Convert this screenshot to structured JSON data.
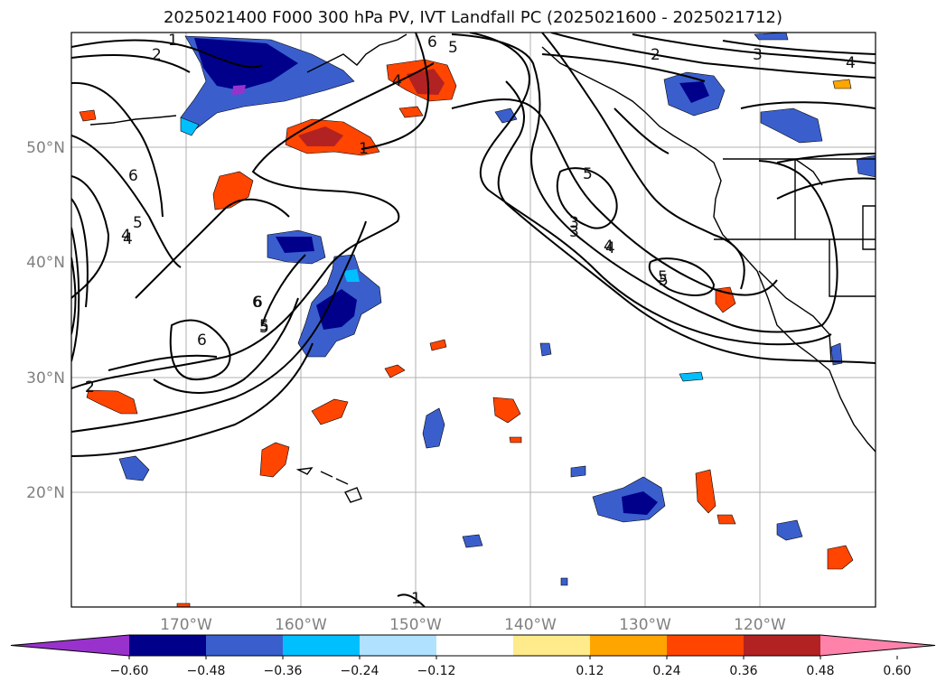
{
  "title": "2025021400 F000 300 hPa PV, IVT Landfall PC (2025021600 - 2025021712)",
  "lat_labels": [
    "50°N",
    "40°N",
    "30°N",
    "20°N"
  ],
  "lon_labels": [
    "170°W",
    "160°W",
    "150°W",
    "140°W",
    "130°W",
    "120°W"
  ],
  "colorbar": {
    "tick_labels": [
      "−0.60",
      "−0.48",
      "−0.36",
      "−0.24",
      "−0.12",
      "0.12",
      "0.24",
      "0.36",
      "0.48",
      "0.60"
    ],
    "colors": [
      "#9932cc",
      "#00008b",
      "#3a5fcd",
      "#00bfff",
      "#b0e2ff",
      "#ffffff",
      "#ffeb8c",
      "#ffa500",
      "#ff4500",
      "#b22222",
      "#ff82ab"
    ]
  },
  "contour_labels": [
    "1",
    "2",
    "6",
    "5",
    "4",
    "6",
    "5",
    "4",
    "1",
    "2",
    "3",
    "4",
    "5",
    "6",
    "5",
    "4",
    "2",
    "3",
    "4",
    "5",
    "4",
    "3",
    "5",
    "6",
    "5",
    "6",
    "2",
    "1"
  ],
  "colors": {
    "positive": "#ff4500",
    "positive_light": "#ffa500",
    "negative": "#3a5fcd",
    "negative_dark": "#00008b"
  }
}
